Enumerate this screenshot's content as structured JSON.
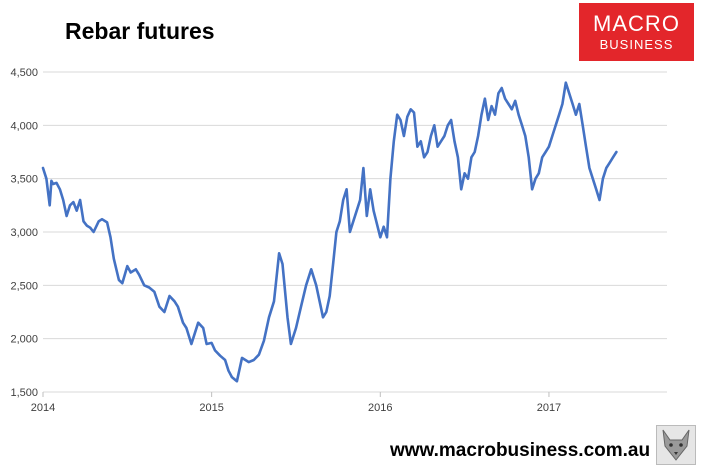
{
  "header": {
    "title": "Rebar futures"
  },
  "logo": {
    "line1": "MACRO",
    "line2": "BUSINESS"
  },
  "footer": {
    "url": "www.macrobusiness.com.au"
  },
  "colors": {
    "series": "#4472c4",
    "logo_bg": "#e3262b",
    "grid": "#d9d9d9"
  },
  "chart_data": {
    "type": "line",
    "title": "Rebar futures",
    "xlabel": "",
    "ylabel": "",
    "ylim": [
      1500,
      4500
    ],
    "yticks": [
      1500,
      2000,
      2500,
      3000,
      3500,
      4000,
      4500
    ],
    "ytick_labels": [
      "1,500",
      "2,000",
      "2,500",
      "3,000",
      "3,500",
      "4,000",
      "4,500"
    ],
    "xlim": [
      2014.0,
      2017.7
    ],
    "xticks": [
      2014,
      2015,
      2016,
      2017
    ],
    "xtick_labels": [
      "2014",
      "2015",
      "2016",
      "2017"
    ],
    "grid": true,
    "legend": "none",
    "series": [
      {
        "x": [
          2014.0,
          2014.02,
          2014.04,
          2014.05,
          2014.06,
          2014.08,
          2014.1,
          2014.12,
          2014.14,
          2014.16,
          2014.18,
          2014.2,
          2014.22,
          2014.24,
          2014.26,
          2014.28,
          2014.3,
          2014.33,
          2014.35,
          2014.38,
          2014.4,
          2014.42,
          2014.45,
          2014.47,
          2014.5,
          2014.52,
          2014.55,
          2014.57,
          2014.6,
          2014.63,
          2014.66,
          2014.69,
          2014.72,
          2014.75,
          2014.78,
          2014.8,
          2014.83,
          2014.85,
          2014.88,
          2014.9,
          2014.92,
          2014.95,
          2014.97,
          2015.0,
          2015.02,
          2015.05,
          2015.08,
          2015.1,
          2015.12,
          2015.15,
          2015.18,
          2015.22,
          2015.25,
          2015.28,
          2015.31,
          2015.34,
          2015.37,
          2015.4,
          2015.42,
          2015.45,
          2015.47,
          2015.5,
          2015.53,
          2015.56,
          2015.59,
          2015.62,
          2015.64,
          2015.66,
          2015.68,
          2015.7,
          2015.72,
          2015.74,
          2015.76,
          2015.78,
          2015.8,
          2015.82,
          2015.84,
          2015.86,
          2015.88,
          2015.9,
          2015.92,
          2015.94,
          2015.96,
          2016.0,
          2016.02,
          2016.04,
          2016.06,
          2016.08,
          2016.1,
          2016.12,
          2016.14,
          2016.16,
          2016.18,
          2016.2,
          2016.22,
          2016.24,
          2016.26,
          2016.28,
          2016.3,
          2016.32,
          2016.34,
          2016.36,
          2016.38,
          2016.4,
          2016.42,
          2016.44,
          2016.46,
          2016.48,
          2016.5,
          2016.52,
          2016.54,
          2016.56,
          2016.58,
          2016.6,
          2016.62,
          2016.64,
          2016.66,
          2016.68,
          2016.7,
          2016.72,
          2016.74,
          2016.76,
          2016.78,
          2016.8,
          2016.82,
          2016.84,
          2016.86,
          2016.88,
          2016.9,
          2016.92,
          2016.94,
          2016.96,
          2016.98,
          2017.0,
          2017.02,
          2017.04,
          2017.06,
          2017.08,
          2017.1,
          2017.12,
          2017.14,
          2017.16,
          2017.18,
          2017.2,
          2017.22,
          2017.24,
          2017.26,
          2017.28,
          2017.3,
          2017.32,
          2017.34,
          2017.36,
          2017.38,
          2017.4
        ],
        "values": [
          3600,
          3500,
          3250,
          3480,
          3450,
          3460,
          3400,
          3300,
          3150,
          3250,
          3280,
          3200,
          3300,
          3100,
          3060,
          3040,
          3000,
          3100,
          3120,
          3090,
          2950,
          2750,
          2550,
          2520,
          2680,
          2620,
          2650,
          2600,
          2500,
          2480,
          2440,
          2300,
          2250,
          2400,
          2350,
          2300,
          2150,
          2100,
          1950,
          2050,
          2150,
          2100,
          1950,
          1960,
          1890,
          1840,
          1800,
          1700,
          1640,
          1600,
          1820,
          1780,
          1800,
          1850,
          1980,
          2200,
          2350,
          2800,
          2700,
          2200,
          1950,
          2100,
          2300,
          2500,
          2650,
          2500,
          2350,
          2200,
          2250,
          2400,
          2700,
          3000,
          3100,
          3300,
          3400,
          3000,
          3100,
          3200,
          3300,
          3600,
          3150,
          3400,
          3200,
          2950,
          3050,
          2950,
          3500,
          3850,
          4100,
          4050,
          3900,
          4080,
          4150,
          4120,
          3800,
          3850,
          3700,
          3750,
          3900,
          4000,
          3800,
          3850,
          3900,
          4000,
          4050,
          3850,
          3700,
          3400,
          3550,
          3500,
          3700,
          3750,
          3900,
          4100,
          4250,
          4050,
          4180,
          4100,
          4300,
          4350,
          4250,
          4200,
          4150,
          4230,
          4100,
          4000,
          3900,
          3700,
          3400,
          3500,
          3550,
          3700,
          3750,
          3800,
          3900,
          4000,
          4100,
          4200,
          4400,
          4300,
          4200,
          4100,
          4200,
          4000,
          3800,
          3600,
          3500,
          3400,
          3300,
          3500,
          3600,
          3650,
          3700,
          3750
        ]
      }
    ]
  }
}
